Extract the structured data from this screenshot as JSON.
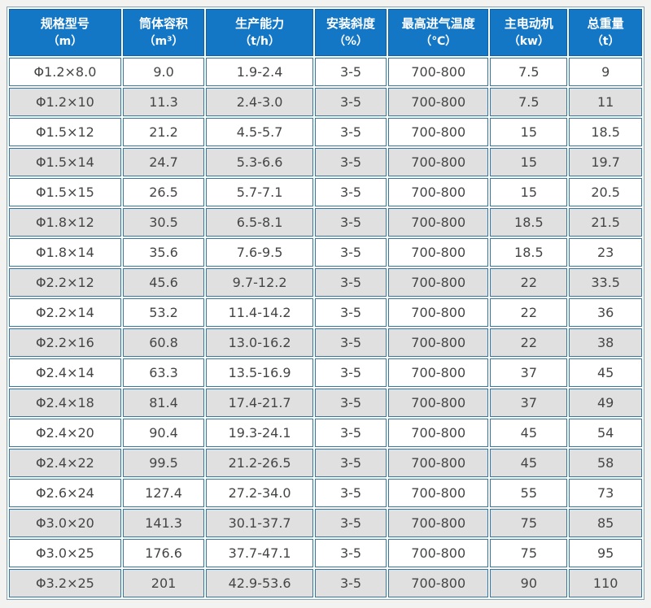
{
  "colors": {
    "header_bg": "#1377C6",
    "header_text": "#FFFFFF",
    "cell_border": "#35779E",
    "header_border": "#0E62A6",
    "row_bg": "#FFFFFF",
    "row_alt_bg": "#E0E0E0",
    "cell_text": "#454545",
    "page_bg": "#F2F2F1"
  },
  "chart_data": {
    "type": "table",
    "legend_position": "none",
    "columns": [
      {
        "label": "规格型号",
        "unit": "（m）"
      },
      {
        "label": "筒体容积",
        "unit": "（m³）"
      },
      {
        "label": "生产能力",
        "unit": "（t/h）"
      },
      {
        "label": "安装斜度",
        "unit": "（%）"
      },
      {
        "label": "最高进气温度",
        "unit": "（℃）"
      },
      {
        "label": "主电动机",
        "unit": "（kw）"
      },
      {
        "label": "总重量",
        "unit": "（t）"
      }
    ],
    "rows": [
      [
        "Φ1.2×8.0",
        "9.0",
        "1.9-2.4",
        "3-5",
        "700-800",
        "7.5",
        "9"
      ],
      [
        "Φ1.2×10",
        "11.3",
        "2.4-3.0",
        "3-5",
        "700-800",
        "7.5",
        "11"
      ],
      [
        "Φ1.5×12",
        "21.2",
        "4.5-5.7",
        "3-5",
        "700-800",
        "15",
        "18.5"
      ],
      [
        "Φ1.5×14",
        "24.7",
        "5.3-6.6",
        "3-5",
        "700-800",
        "15",
        "19.7"
      ],
      [
        "Φ1.5×15",
        "26.5",
        "5.7-7.1",
        "3-5",
        "700-800",
        "15",
        "20.5"
      ],
      [
        "Φ1.8×12",
        "30.5",
        "6.5-8.1",
        "3-5",
        "700-800",
        "18.5",
        "21.5"
      ],
      [
        "Φ1.8×14",
        "35.6",
        "7.6-9.5",
        "3-5",
        "700-800",
        "18.5",
        "23"
      ],
      [
        "Φ2.2×12",
        "45.6",
        "9.7-12.2",
        "3-5",
        "700-800",
        "22",
        "33.5"
      ],
      [
        "Φ2.2×14",
        "53.2",
        "11.4-14.2",
        "3-5",
        "700-800",
        "22",
        "36"
      ],
      [
        "Φ2.2×16",
        "60.8",
        "13.0-16.2",
        "3-5",
        "700-800",
        "22",
        "38"
      ],
      [
        "Φ2.4×14",
        "63.3",
        "13.5-16.9",
        "3-5",
        "700-800",
        "37",
        "45"
      ],
      [
        "Φ2.4×18",
        "81.4",
        "17.4-21.7",
        "3-5",
        "700-800",
        "37",
        "49"
      ],
      [
        "Φ2.4×20",
        "90.4",
        "19.3-24.1",
        "3-5",
        "700-800",
        "45",
        "54"
      ],
      [
        "Φ2.4×22",
        "99.5",
        "21.2-26.5",
        "3-5",
        "700-800",
        "45",
        "58"
      ],
      [
        "Φ2.6×24",
        "127.4",
        "27.2-34.0",
        "3-5",
        "700-800",
        "55",
        "73"
      ],
      [
        "Φ3.0×20",
        "141.3",
        "30.1-37.7",
        "3-5",
        "700-800",
        "75",
        "85"
      ],
      [
        "Φ3.0×25",
        "176.6",
        "37.7-47.1",
        "3-5",
        "700-800",
        "75",
        "95"
      ],
      [
        "Φ3.2×25",
        "201",
        "42.9-53.6",
        "3-5",
        "700-800",
        "90",
        "110"
      ]
    ]
  }
}
